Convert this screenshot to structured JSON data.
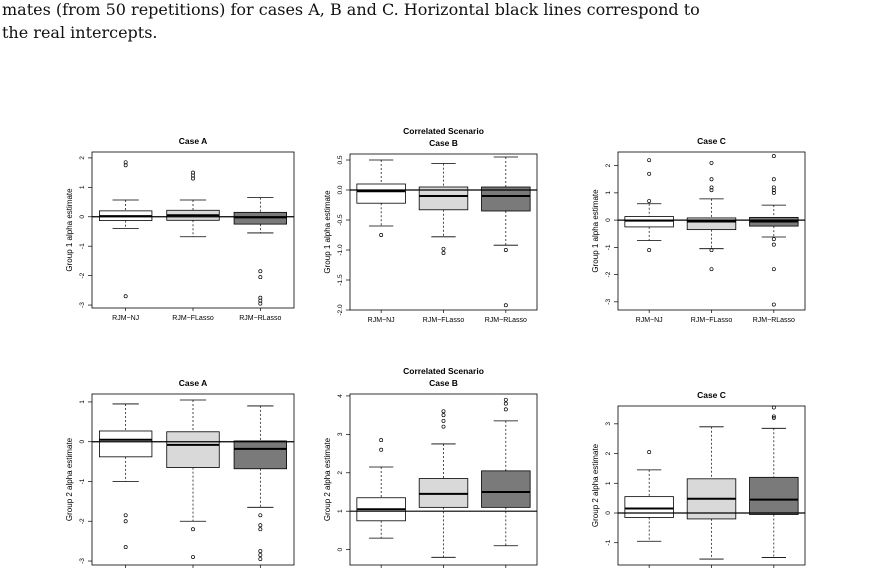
{
  "caption": {
    "line1": "mates (from 50 repetitions) for cases A, B and C. Horizontal black lines correspond to",
    "line2": "the real intercepts."
  },
  "colors": {
    "RJM-NJ": "#ffffff",
    "RJM-FLasso": "#d9d9d9",
    "RJM-RLasso": "#7a7a7a",
    "stroke": "#000000"
  },
  "chart_data": [
    {
      "type": "box",
      "title": "Case A",
      "subtitle": "",
      "ylabel": "Group 1 alpha estimate",
      "ylim": [
        -3.1,
        2.2
      ],
      "yticks": [
        -3,
        -2,
        -1,
        0,
        1,
        2
      ],
      "reference_line": 0,
      "categories": [
        "RJM−NJ",
        "RJM−FLasso",
        "RJM−RLasso"
      ],
      "boxes": [
        {
          "whisker_low": -0.4,
          "q1": -0.13,
          "median": 0.02,
          "q3": 0.2,
          "whisker_high": 0.57,
          "outliers": [
            -2.7,
            1.75,
            1.85
          ]
        },
        {
          "whisker_low": -0.68,
          "q1": -0.12,
          "median": 0.05,
          "q3": 0.22,
          "whisker_high": 0.57,
          "outliers": [
            1.3,
            1.4,
            1.5
          ]
        },
        {
          "whisker_low": -0.55,
          "q1": -0.25,
          "median": -0.02,
          "q3": 0.15,
          "whisker_high": 0.65,
          "outliers": [
            -1.85,
            -2.05,
            -2.75,
            -2.85,
            -2.95
          ]
        }
      ]
    },
    {
      "type": "box",
      "title": "Case B",
      "subtitle": "Correlated Scenario",
      "ylabel": "Group 1 alpha estimate",
      "ylim": [
        -2.0,
        0.6
      ],
      "yticks": [
        -2.0,
        -1.5,
        -1.0,
        -0.5,
        0.0,
        0.5
      ],
      "reference_line": 0,
      "categories": [
        "RJM−NJ",
        "RJM−FLasso",
        "RJM−RLasso"
      ],
      "boxes": [
        {
          "whisker_low": -0.6,
          "q1": -0.22,
          "median": -0.02,
          "q3": 0.1,
          "whisker_high": 0.5,
          "outliers": [
            -0.75
          ]
        },
        {
          "whisker_low": -0.78,
          "q1": -0.33,
          "median": -0.1,
          "q3": 0.05,
          "whisker_high": 0.44,
          "outliers": [
            -0.98,
            -1.05
          ]
        },
        {
          "whisker_low": -0.92,
          "q1": -0.35,
          "median": -0.1,
          "q3": 0.05,
          "whisker_high": 0.55,
          "outliers": [
            -1.0,
            -1.92
          ]
        }
      ]
    },
    {
      "type": "box",
      "title": "Case C",
      "subtitle": "",
      "ylabel": "Group 1 alpha estimate",
      "ylim": [
        -3.3,
        2.5
      ],
      "yticks": [
        -3,
        -2,
        -1,
        0,
        1,
        2
      ],
      "reference_line": 0,
      "categories": [
        "RJM−NJ",
        "RJM−FLasso",
        "RJM−RLasso"
      ],
      "boxes": [
        {
          "whisker_low": -0.75,
          "q1": -0.25,
          "median": -0.02,
          "q3": 0.13,
          "whisker_high": 0.6,
          "outliers": [
            -1.1,
            0.7,
            1.7,
            2.2
          ]
        },
        {
          "whisker_low": -1.05,
          "q1": -0.35,
          "median": -0.05,
          "q3": 0.08,
          "whisker_high": 0.78,
          "outliers": [
            -1.1,
            -1.8,
            1.1,
            1.2,
            1.5,
            2.1
          ]
        },
        {
          "whisker_low": -0.62,
          "q1": -0.22,
          "median": -0.05,
          "q3": 0.1,
          "whisker_high": 0.55,
          "outliers": [
            -0.7,
            -0.9,
            -1.8,
            -3.1,
            1.0,
            1.1,
            1.2,
            1.5,
            2.35
          ]
        }
      ]
    },
    {
      "type": "box",
      "title": "Case A",
      "subtitle": "",
      "ylabel": "Group 2 alpha estimate",
      "ylim": [
        -3.1,
        1.2
      ],
      "yticks": [
        -3,
        -2,
        -1,
        0,
        1
      ],
      "reference_line": 0,
      "categories": [
        "RJM−NJ",
        "RJM−FLasso",
        "RJM−RLasso"
      ],
      "boxes": [
        {
          "whisker_low": -1.0,
          "q1": -0.38,
          "median": 0.05,
          "q3": 0.27,
          "whisker_high": 0.95,
          "outliers": [
            -1.85,
            -2.0,
            -2.65
          ]
        },
        {
          "whisker_low": -2.0,
          "q1": -0.65,
          "median": -0.08,
          "q3": 0.25,
          "whisker_high": 1.05,
          "outliers": [
            -2.2,
            -2.9
          ]
        },
        {
          "whisker_low": -1.65,
          "q1": -0.68,
          "median": -0.18,
          "q3": 0.02,
          "whisker_high": 0.9,
          "outliers": [
            -1.85,
            -2.1,
            -2.2,
            -2.75,
            -2.85,
            -2.95
          ]
        }
      ]
    },
    {
      "type": "box",
      "title": "Case B",
      "subtitle": "Correlated Scenario",
      "ylabel": "Group 2 alpha estimate",
      "ylim": [
        -0.4,
        4.05
      ],
      "yticks": [
        0,
        1,
        2,
        3,
        4
      ],
      "reference_line": 1,
      "categories": [
        "RJM−NJ",
        "RJM−FLasso",
        "RJM−RLasso"
      ],
      "boxes": [
        {
          "whisker_low": 0.3,
          "q1": 0.75,
          "median": 1.05,
          "q3": 1.35,
          "whisker_high": 2.15,
          "outliers": [
            2.6,
            2.85
          ]
        },
        {
          "whisker_low": -0.2,
          "q1": 1.1,
          "median": 1.45,
          "q3": 1.85,
          "whisker_high": 2.75,
          "outliers": [
            3.2,
            3.35,
            3.5,
            3.6
          ]
        },
        {
          "whisker_low": 0.1,
          "q1": 1.1,
          "median": 1.5,
          "q3": 2.05,
          "whisker_high": 3.35,
          "outliers": [
            3.65,
            3.8,
            3.9
          ]
        }
      ]
    },
    {
      "type": "box",
      "title": "Case C",
      "subtitle": "",
      "ylabel": "Group 2 alpha estimate",
      "ylim": [
        -1.75,
        3.6
      ],
      "yticks": [
        -1,
        0,
        1,
        2,
        3
      ],
      "reference_line": 0,
      "categories": [
        "RJM−NJ",
        "RJM−FLasso",
        "RJM−RLasso"
      ],
      "boxes": [
        {
          "whisker_low": -0.95,
          "q1": -0.15,
          "median": 0.15,
          "q3": 0.55,
          "whisker_high": 1.45,
          "outliers": [
            2.05
          ]
        },
        {
          "whisker_low": -1.55,
          "q1": -0.2,
          "median": 0.48,
          "q3": 1.15,
          "whisker_high": 2.9,
          "outliers": []
        },
        {
          "whisker_low": -1.5,
          "q1": -0.05,
          "median": 0.45,
          "q3": 1.2,
          "whisker_high": 2.85,
          "outliers": [
            3.2,
            3.25,
            3.55
          ]
        }
      ]
    }
  ]
}
